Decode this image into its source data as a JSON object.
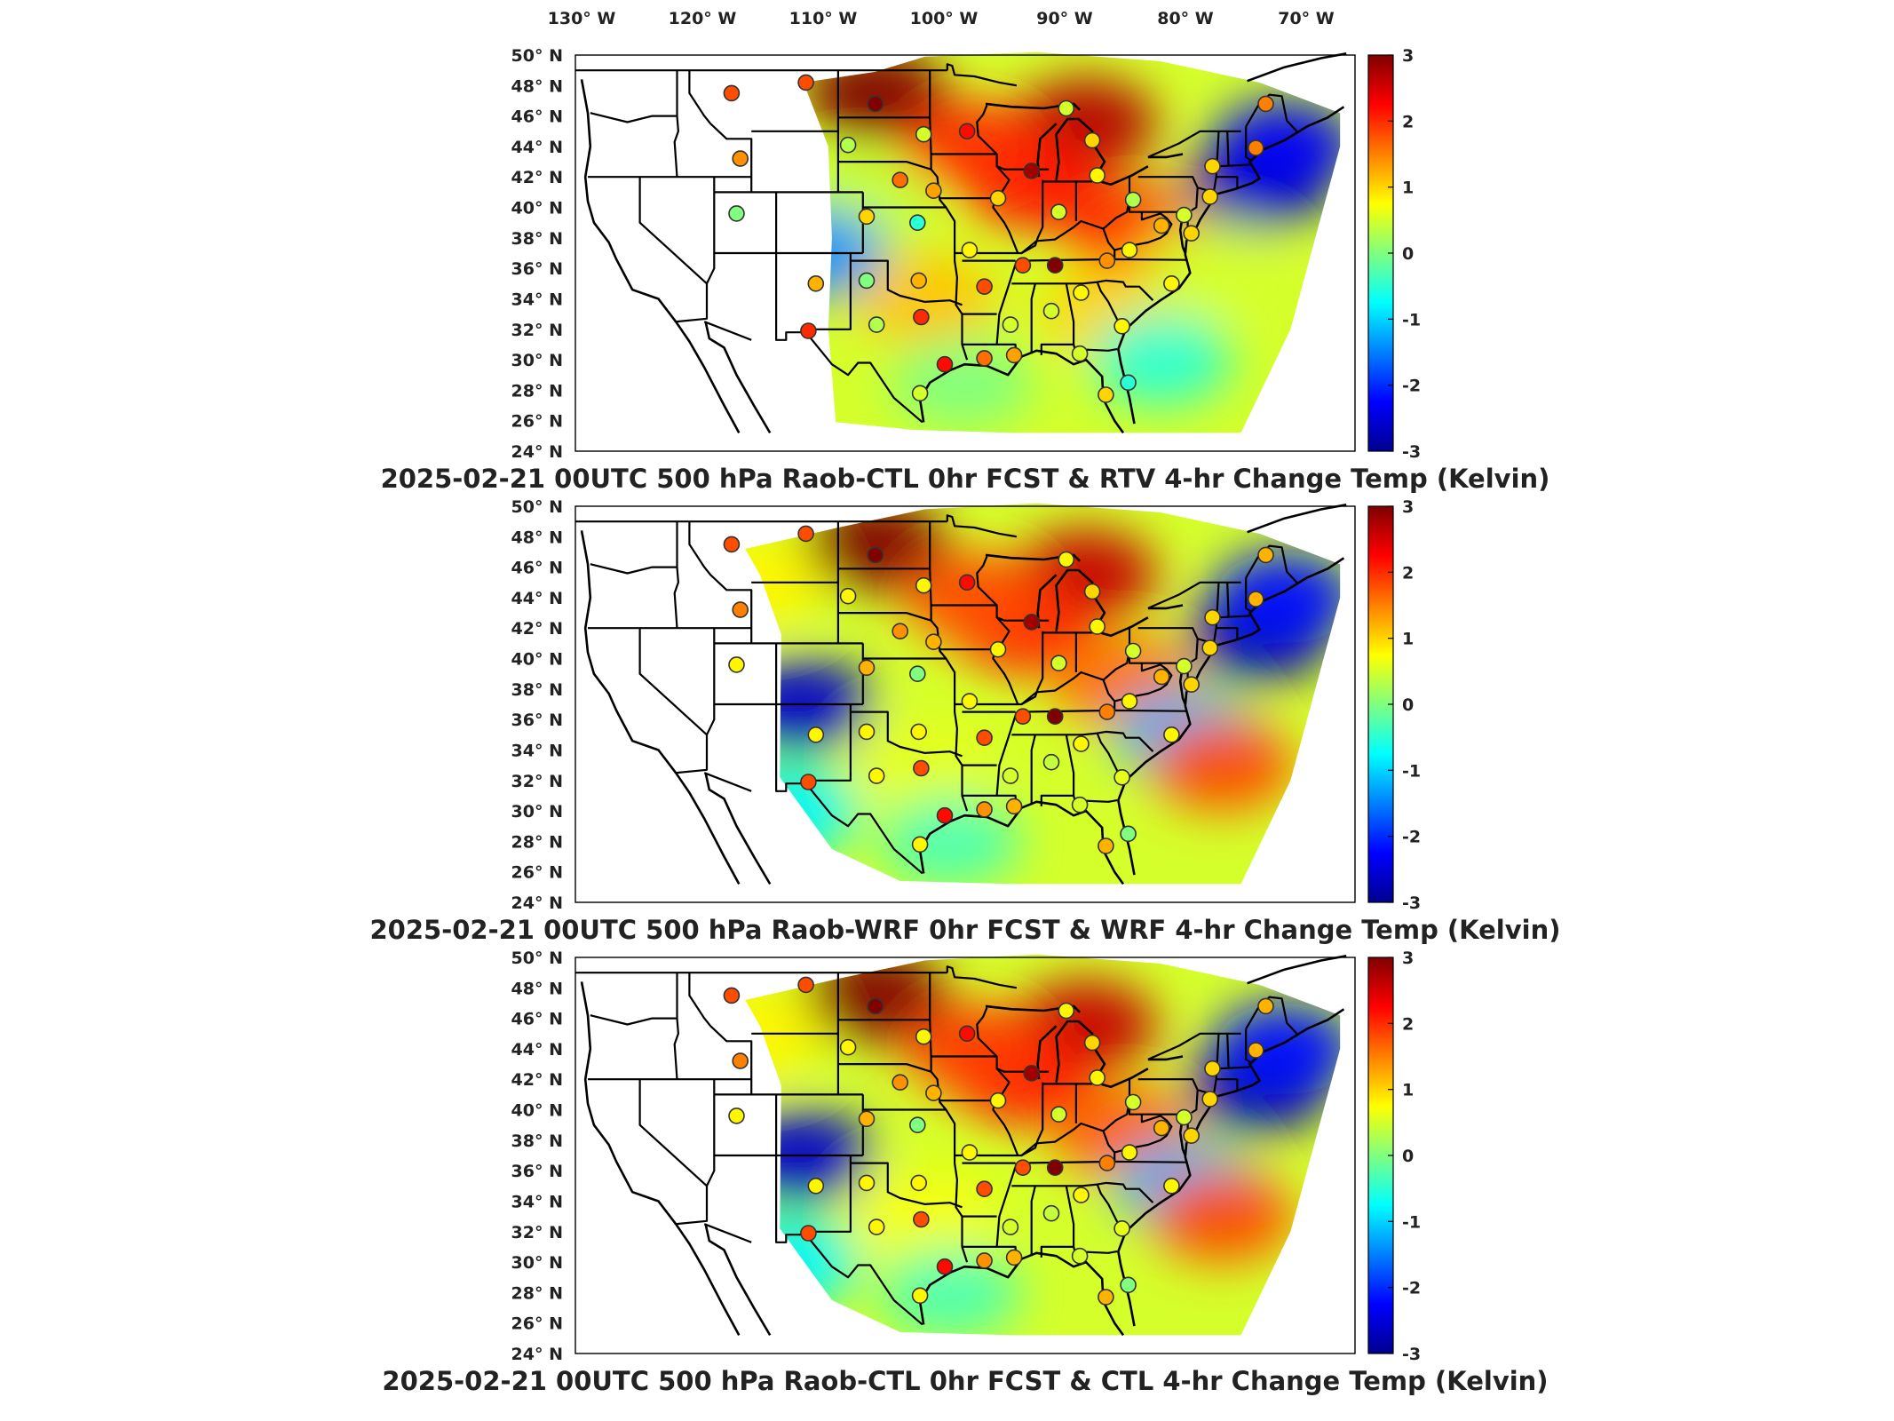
{
  "longitude_labels": [
    "130° W",
    "120° W",
    "110° W",
    "100° W",
    "90° W",
    "80° W",
    "70° W"
  ],
  "latitude_labels": [
    "50° N",
    "48° N",
    "46° N",
    "44° N",
    "42° N",
    "40° N",
    "38° N",
    "36° N",
    "34° N",
    "32° N",
    "30° N",
    "28° N",
    "26° N",
    "24° N"
  ],
  "colorbar": {
    "min": -3,
    "max": 3,
    "tick_labels": [
      "3",
      "2",
      "1",
      "0",
      "-1",
      "-2",
      "-3"
    ],
    "colormap": [
      "#00008f",
      "#0000ff",
      "#0080ff",
      "#00ffff",
      "#80ff80",
      "#ffff00",
      "#ff8000",
      "#ff0000",
      "#800000"
    ]
  },
  "panels": [
    {
      "id": "rtv",
      "title": "2025-02-21 00UTC 500 hPa Raob-CTL 0hr FCST & RTV 4-hr Change Temp (Kelvin)",
      "coverage": "rtv",
      "field_blobs": [
        {
          "lon": -101,
          "lat": 47.5,
          "v": 3
        },
        {
          "lon": -84,
          "lat": 45.5,
          "v": 2.7
        },
        {
          "lon": -88,
          "lat": 41.5,
          "v": 2.2
        },
        {
          "lon": -93,
          "lat": 44,
          "v": 2
        },
        {
          "lon": -80,
          "lat": 38.5,
          "v": 2
        },
        {
          "lon": -82,
          "lat": 33,
          "v": 1
        },
        {
          "lon": -97,
          "lat": 34,
          "v": 1.1
        },
        {
          "lon": -102,
          "lat": 40,
          "v": 0.4
        },
        {
          "lon": -106,
          "lat": 37,
          "v": -1.4
        },
        {
          "lon": -70,
          "lat": 41.5,
          "v": -2.8
        },
        {
          "lon": -68,
          "lat": 44,
          "v": -2.3
        },
        {
          "lon": -78,
          "lat": 30,
          "v": -0.5
        },
        {
          "lon": -94,
          "lat": 28.5,
          "v": 0
        },
        {
          "lon": -74,
          "lat": 36,
          "v": 0.5
        }
      ],
      "obs_values": [
        1.8,
        1.8,
        3,
        1.4,
        0,
        1.2,
        2,
        0.3,
        0.5,
        2.2,
        1.6,
        1.3,
        1,
        -0.5,
        0.8,
        1,
        2.8,
        0.5,
        1,
        0.8,
        0.5,
        0.3,
        1.2,
        0.8,
        0.5,
        1,
        1,
        1.5,
        1.5,
        1,
        0.8,
        0.8,
        0.5,
        0.5,
        0.5
      ]
    },
    {
      "id": "wrf",
      "title": "2025-02-21 00UTC 500 hPa Raob-WRF 0hr FCST & WRF 4-hr Change Temp (Kelvin)",
      "coverage": "model",
      "field_blobs": [
        {
          "lon": -101,
          "lat": 47.5,
          "v": 3
        },
        {
          "lon": -84,
          "lat": 45.5,
          "v": 2.6
        },
        {
          "lon": -89,
          "lat": 42,
          "v": 2.1
        },
        {
          "lon": -93,
          "lat": 44,
          "v": 1.8
        },
        {
          "lon": -81,
          "lat": 38.5,
          "v": 1.6
        },
        {
          "lon": -97,
          "lat": 33,
          "v": 0.6
        },
        {
          "lon": -107,
          "lat": 37,
          "v": -2.6
        },
        {
          "lon": -70,
          "lat": 41.5,
          "v": -2.8
        },
        {
          "lon": -68,
          "lat": 44,
          "v": -2.2
        },
        {
          "lon": -76,
          "lat": 35,
          "v": -1.2
        },
        {
          "lon": -73,
          "lat": 33,
          "v": 1.8
        },
        {
          "lon": -108,
          "lat": 30,
          "v": -0.8
        },
        {
          "lon": -95,
          "lat": 28,
          "v": -0.3
        },
        {
          "lon": -111,
          "lat": 45,
          "v": 0.8
        }
      ],
      "obs_values": [
        1.8,
        1.8,
        3,
        1.5,
        0.8,
        0.8,
        1.8,
        0.8,
        0.8,
        2.2,
        1.4,
        1.2,
        1.2,
        0,
        0.8,
        0.8,
        2.8,
        0.8,
        1,
        0.8,
        0.5,
        0.5,
        1.2,
        0.8,
        0.5,
        1,
        1,
        1.2,
        1.2,
        1,
        0.8,
        0.6,
        0.5,
        0.4,
        0.5
      ]
    },
    {
      "id": "ctl",
      "title": "2025-02-21 00UTC 500 hPa Raob-CTL 0hr FCST & CTL 4-hr Change Temp (Kelvin)",
      "coverage": "model",
      "field_blobs": [
        {
          "lon": -101,
          "lat": 47.5,
          "v": 3
        },
        {
          "lon": -84,
          "lat": 45.5,
          "v": 2.6
        },
        {
          "lon": -89,
          "lat": 42,
          "v": 2.2
        },
        {
          "lon": -93,
          "lat": 44,
          "v": 1.9
        },
        {
          "lon": -81,
          "lat": 38.5,
          "v": 1.7
        },
        {
          "lon": -97,
          "lat": 33,
          "v": 0.7
        },
        {
          "lon": -107,
          "lat": 37,
          "v": -2.6
        },
        {
          "lon": -70,
          "lat": 41.5,
          "v": -2.8
        },
        {
          "lon": -68,
          "lat": 44,
          "v": -2.2
        },
        {
          "lon": -76,
          "lat": 35,
          "v": -1.2
        },
        {
          "lon": -73,
          "lat": 33,
          "v": 1.8
        },
        {
          "lon": -108,
          "lat": 30,
          "v": -0.8
        },
        {
          "lon": -95,
          "lat": 28,
          "v": -0.3
        },
        {
          "lon": -111,
          "lat": 45,
          "v": 0.8
        }
      ],
      "obs_values": [
        1.8,
        1.8,
        3,
        1.5,
        0.8,
        0.8,
        1.8,
        0.8,
        0.8,
        2.2,
        1.4,
        1.2,
        1.2,
        0,
        0.8,
        0.8,
        2.8,
        0.8,
        1,
        0.8,
        0.5,
        0.5,
        1.2,
        0.8,
        0.5,
        1,
        1,
        1.2,
        1.2,
        1,
        0.8,
        0.6,
        0.5,
        0.4,
        0.5
      ]
    }
  ],
  "raob_stations": [
    [
      -112.6,
      47.5
    ],
    [
      -106.6,
      48.2
    ],
    [
      -101.0,
      46.8
    ],
    [
      -111.9,
      43.2
    ],
    [
      -112.2,
      39.6
    ],
    [
      -105.8,
      35.0
    ],
    [
      -106.4,
      31.9
    ],
    [
      -103.2,
      44.1
    ],
    [
      -97.1,
      44.8
    ],
    [
      -93.6,
      45.0
    ],
    [
      -99.0,
      41.8
    ],
    [
      -96.3,
      41.1
    ],
    [
      -101.7,
      39.4
    ],
    [
      -97.6,
      39.0
    ],
    [
      -93.4,
      37.2
    ],
    [
      -91.1,
      40.6
    ],
    [
      -88.4,
      42.4
    ],
    [
      -85.6,
      46.5
    ],
    [
      -83.5,
      44.4
    ],
    [
      -83.1,
      42.1
    ],
    [
      -86.2,
      39.7
    ],
    [
      -80.2,
      40.5
    ],
    [
      -77.9,
      38.8
    ],
    [
      -80.5,
      37.2
    ],
    [
      -76.1,
      39.5
    ],
    [
      -74.0,
      40.7
    ],
    [
      -73.8,
      42.7
    ],
    [
      -70.3,
      43.9
    ],
    [
      -69.5,
      46.8
    ],
    [
      -75.5,
      38.3
    ],
    [
      -77.1,
      35.0
    ],
    [
      -81.1,
      32.2
    ],
    [
      -84.5,
      30.4
    ],
    [
      -86.8,
      33.2
    ],
    [
      -90.1,
      32.3
    ],
    [
      -92.2,
      34.8
    ],
    [
      -89.1,
      36.2
    ],
    [
      -86.5,
      36.2
    ],
    [
      -82.3,
      36.5
    ],
    [
      -101.7,
      35.2
    ],
    [
      -97.5,
      35.2
    ],
    [
      -97.3,
      32.8
    ],
    [
      -100.9,
      32.3
    ],
    [
      -97.4,
      27.8
    ],
    [
      -95.4,
      29.7
    ],
    [
      -92.2,
      30.1
    ],
    [
      -89.8,
      30.3
    ],
    [
      -82.4,
      27.7
    ],
    [
      -80.6,
      28.5
    ],
    [
      -84.4,
      34.4
    ]
  ]
}
